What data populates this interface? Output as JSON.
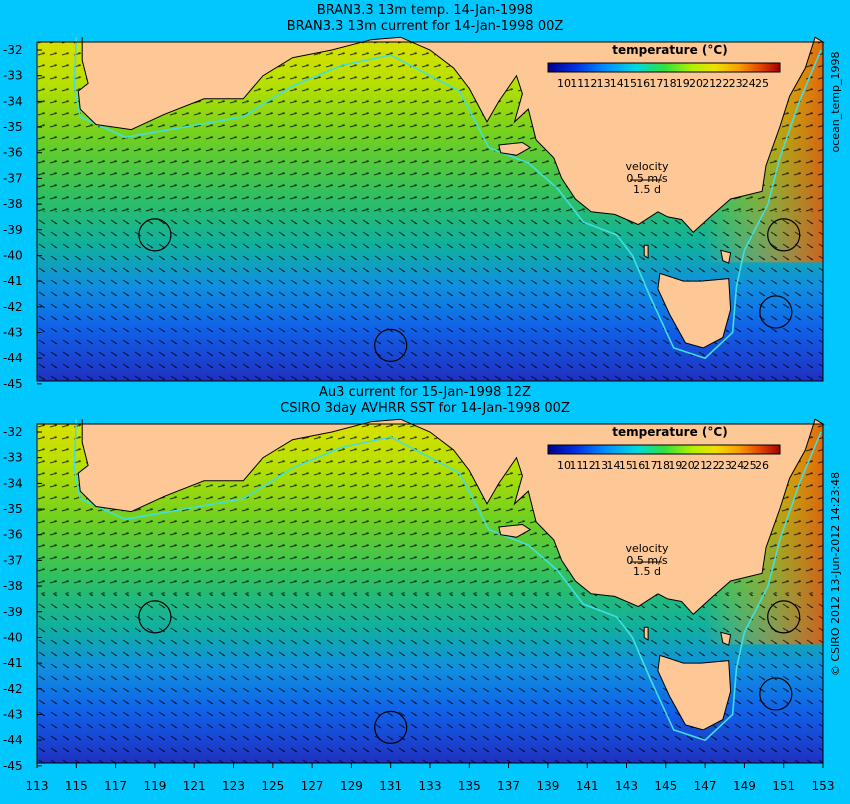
{
  "panels": [
    {
      "title_line1": "BRAN3.3 13m temp. 14-Jan-1998",
      "title_line2": "BRAN3.3 13m current for 14-Jan-1998 00Z",
      "colorbar_title": "temperature (°C)",
      "colorbar_ticks": [
        "10",
        "11",
        "12",
        "13",
        "14",
        "15",
        "16",
        "17",
        "18",
        "19",
        "20",
        "21",
        "22",
        "23",
        "24",
        "25"
      ],
      "velocity_label": "velocity",
      "velocity_scale": "0.5 m/s",
      "velocity_time": "1.5 d",
      "side_label": "ocean_temp_1998"
    },
    {
      "title_line1": "Au3 current for 15-Jan-1998 12Z",
      "title_line2": "CSIRO 3day AVHRR SST for 14-Jan-1998 00Z",
      "colorbar_title": "temperature (°C)",
      "colorbar_ticks": [
        "10",
        "11",
        "12",
        "13",
        "14",
        "15",
        "16",
        "17",
        "18",
        "19",
        "20",
        "21",
        "22",
        "23",
        "24",
        "25",
        "26"
      ],
      "velocity_label": "velocity",
      "velocity_scale": "0.5 m/s",
      "velocity_time": "1.5 d",
      "side_label": "© CSIRO 2012 13-Jun-2012 14:23:48"
    }
  ],
  "lat_labels": [
    "-32",
    "-33",
    "-34",
    "-35",
    "-36",
    "-37",
    "-38",
    "-39",
    "-40",
    "-41",
    "-42",
    "-43",
    "-44",
    "-45"
  ],
  "lon_labels": [
    "113",
    "115",
    "117",
    "119",
    "121",
    "123",
    "125",
    "127",
    "129",
    "131",
    "133",
    "135",
    "137",
    "139",
    "141",
    "143",
    "145",
    "147",
    "149",
    "151",
    "153"
  ],
  "colors": {
    "background": "#00c8ff",
    "land": "#fdc896",
    "isobath": "#40e0e0"
  }
}
